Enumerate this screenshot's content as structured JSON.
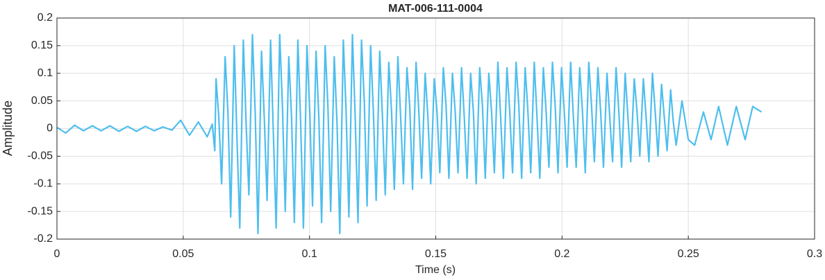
{
  "chart_data": {
    "type": "line",
    "title": "MAT-006-111-0004",
    "x_label": "Time (s)",
    "y_label": "Amplitude",
    "color": "#4dbeee",
    "grid": true,
    "xlim": [
      0,
      0.3
    ],
    "xticks": [
      0,
      0.05,
      0.1,
      0.15,
      0.2,
      0.25,
      0.3
    ],
    "ylim": [
      -0.2,
      0.2
    ],
    "yticks": [
      -0.2,
      -0.15,
      -0.1,
      -0.05,
      0,
      0.05,
      0.1,
      0.15,
      0.2
    ],
    "x": [
      0,
      0.0035,
      0.007,
      0.0105,
      0.014,
      0.0175,
      0.021,
      0.0245,
      0.028,
      0.0315,
      0.035,
      0.0385,
      0.042,
      0.0455,
      0.049,
      0.0525,
      0.056,
      0.0595,
      0.0615,
      0.0625,
      0.063,
      0.0641,
      0.0652,
      0.0666,
      0.0677,
      0.0688,
      0.0702,
      0.0713,
      0.0724,
      0.0738,
      0.0749,
      0.076,
      0.0774,
      0.0785,
      0.0796,
      0.081,
      0.0821,
      0.0832,
      0.0846,
      0.0857,
      0.0868,
      0.0882,
      0.0893,
      0.0904,
      0.0918,
      0.0929,
      0.094,
      0.0954,
      0.0965,
      0.0976,
      0.099,
      0.1001,
      0.1012,
      0.1026,
      0.1037,
      0.1048,
      0.1062,
      0.1073,
      0.1084,
      0.1098,
      0.1109,
      0.112,
      0.1134,
      0.1145,
      0.1156,
      0.117,
      0.1181,
      0.1192,
      0.1206,
      0.1217,
      0.1228,
      0.1242,
      0.1253,
      0.1264,
      0.1278,
      0.1289,
      0.13,
      0.1314,
      0.1325,
      0.1336,
      0.135,
      0.1361,
      0.1372,
      0.1386,
      0.1397,
      0.1408,
      0.1422,
      0.1433,
      0.1444,
      0.1458,
      0.1469,
      0.148,
      0.1494,
      0.1505,
      0.1516,
      0.153,
      0.1541,
      0.1552,
      0.1566,
      0.1577,
      0.1588,
      0.1602,
      0.1613,
      0.1624,
      0.1638,
      0.1649,
      0.166,
      0.1674,
      0.1685,
      0.1696,
      0.171,
      0.1721,
      0.1732,
      0.1746,
      0.1757,
      0.1768,
      0.1782,
      0.1793,
      0.1804,
      0.1818,
      0.1829,
      0.184,
      0.1854,
      0.1865,
      0.1876,
      0.189,
      0.1901,
      0.1912,
      0.1926,
      0.1937,
      0.1948,
      0.1962,
      0.1973,
      0.1984,
      0.1998,
      0.2009,
      0.202,
      0.2034,
      0.2045,
      0.2056,
      0.207,
      0.2081,
      0.2092,
      0.2106,
      0.2117,
      0.2128,
      0.2142,
      0.2153,
      0.2164,
      0.2178,
      0.2189,
      0.22,
      0.2214,
      0.2225,
      0.2236,
      0.225,
      0.2261,
      0.2272,
      0.2286,
      0.2297,
      0.2308,
      0.2322,
      0.2333,
      0.2344,
      0.2358,
      0.2369,
      0.238,
      0.2394,
      0.2405,
      0.2416,
      0.243,
      0.2441,
      0.2452,
      0.2475,
      0.25,
      0.2525,
      0.256,
      0.259,
      0.262,
      0.2655,
      0.269,
      0.2725,
      0.2755,
      0.279
    ],
    "values": [
      0.002,
      -0.008,
      0.006,
      -0.004,
      0.005,
      -0.004,
      0.005,
      -0.005,
      0.004,
      -0.005,
      0.004,
      -0.004,
      0.003,
      -0.003,
      0.015,
      -0.012,
      0.012,
      -0.015,
      0.008,
      -0.04,
      0.09,
      0.02,
      -0.1,
      0.13,
      0.03,
      -0.16,
      0.15,
      -0.02,
      -0.18,
      0.16,
      0.01,
      -0.12,
      0.17,
      0.03,
      -0.19,
      0.14,
      0.02,
      -0.13,
      0.16,
      -0.01,
      -0.18,
      0.17,
      0.04,
      -0.15,
      0.13,
      0.02,
      -0.17,
      0.16,
      0.01,
      -0.18,
      0.15,
      0.03,
      -0.14,
      0.14,
      0.02,
      -0.17,
      0.15,
      0.04,
      -0.15,
      0.13,
      0.01,
      -0.19,
      0.16,
      0.03,
      -0.16,
      0.17,
      0.02,
      -0.17,
      0.16,
      0.05,
      -0.14,
      0.15,
      0.03,
      -0.13,
      0.14,
      0.02,
      -0.12,
      0.12,
      0.03,
      -0.11,
      0.13,
      0.02,
      -0.1,
      0.11,
      0.04,
      -0.11,
      0.12,
      0.03,
      -0.09,
      0.1,
      0.02,
      -0.1,
      0.09,
      0.03,
      -0.08,
      0.11,
      0.04,
      -0.09,
      0.1,
      0.03,
      -0.08,
      0.11,
      0.02,
      -0.09,
      0.1,
      0.03,
      -0.1,
      0.11,
      0.04,
      -0.09,
      0.1,
      0.03,
      -0.08,
      0.12,
      0.02,
      -0.09,
      0.11,
      0.03,
      -0.08,
      0.12,
      0.04,
      -0.09,
      0.11,
      0.03,
      -0.08,
      0.12,
      0.02,
      -0.09,
      0.11,
      0.03,
      -0.07,
      0.12,
      0.04,
      -0.08,
      0.11,
      0.03,
      -0.07,
      0.12,
      0.02,
      -0.07,
      0.11,
      0.03,
      -0.08,
      0.12,
      0.04,
      -0.06,
      0.11,
      0.03,
      -0.07,
      0.1,
      0.02,
      -0.06,
      0.11,
      0.03,
      -0.07,
      0.1,
      0.02,
      -0.06,
      0.09,
      0.03,
      -0.05,
      0.09,
      0.02,
      -0.06,
      0.1,
      0.03,
      -0.05,
      0.08,
      0.02,
      -0.04,
      0.07,
      0.01,
      -0.03,
      0.05,
      -0.02,
      -0.03,
      0.03,
      -0.02,
      0.04,
      -0.03,
      0.04,
      -0.02,
      0.04,
      0.03
    ]
  }
}
